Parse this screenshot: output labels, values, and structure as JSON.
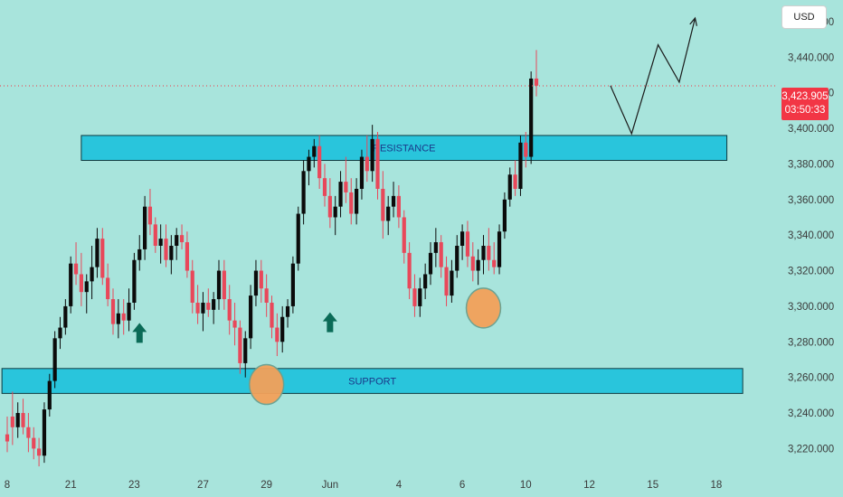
{
  "currency": "USD",
  "colors": {
    "background": "#a8e4dc",
    "bull": "#0b0b0b",
    "bear": "#e8485a",
    "zone_fill": "#29c5dc",
    "zone_stroke": "#0f3a40",
    "circle": "#f3a15a",
    "arrow": "#0a6b57",
    "price_tag": "#f23645"
  },
  "price_tag": {
    "price": "3,423.905",
    "countdown": "03:50:33"
  },
  "chart_data": {
    "type": "candlestick",
    "title": "",
    "y_range": [
      3207,
      3462
    ],
    "y_ticks": [
      "3,220.000",
      "3,240.000",
      "3,260.000",
      "3,280.000",
      "3,300.000",
      "3,320.000",
      "3,340.000",
      "3,360.000",
      "3,380.000",
      "3,400.000",
      "3,420.000",
      "3,440.000",
      "3,460.000"
    ],
    "x_ticks": [
      "8",
      "21",
      "23",
      "27",
      "29",
      "Jun",
      "4",
      "6",
      "10",
      "12",
      "15",
      "18"
    ],
    "x_tick_positions": [
      0,
      12,
      24,
      37,
      49,
      61,
      74,
      86,
      98,
      110,
      122,
      134
    ],
    "candles": [
      [
        3228,
        3238,
        3218,
        3224
      ],
      [
        3238,
        3252,
        3222,
        3232
      ],
      [
        3232,
        3246,
        3226,
        3240
      ],
      [
        3240,
        3248,
        3228,
        3232
      ],
      [
        3232,
        3240,
        3218,
        3226
      ],
      [
        3226,
        3232,
        3214,
        3220
      ],
      [
        3220,
        3226,
        3210,
        3216
      ],
      [
        3216,
        3246,
        3212,
        3242
      ],
      [
        3242,
        3262,
        3238,
        3258
      ],
      [
        3258,
        3286,
        3254,
        3282
      ],
      [
        3282,
        3294,
        3276,
        3288
      ],
      [
        3288,
        3304,
        3284,
        3300
      ],
      [
        3300,
        3328,
        3296,
        3324
      ],
      [
        3324,
        3336,
        3312,
        3318
      ],
      [
        3318,
        3330,
        3300,
        3308
      ],
      [
        3308,
        3318,
        3296,
        3314
      ],
      [
        3314,
        3334,
        3304,
        3322
      ],
      [
        3322,
        3344,
        3316,
        3338
      ],
      [
        3338,
        3344,
        3312,
        3316
      ],
      [
        3316,
        3324,
        3300,
        3304
      ],
      [
        3304,
        3310,
        3284,
        3290
      ],
      [
        3290,
        3304,
        3282,
        3296
      ],
      [
        3296,
        3304,
        3284,
        3292
      ],
      [
        3292,
        3310,
        3286,
        3302
      ],
      [
        3302,
        3330,
        3298,
        3326
      ],
      [
        3326,
        3340,
        3320,
        3332
      ],
      [
        3332,
        3362,
        3326,
        3356
      ],
      [
        3356,
        3366,
        3340,
        3346
      ],
      [
        3346,
        3350,
        3330,
        3334
      ],
      [
        3334,
        3346,
        3324,
        3338
      ],
      [
        3338,
        3346,
        3322,
        3326
      ],
      [
        3326,
        3340,
        3318,
        3334
      ],
      [
        3334,
        3344,
        3326,
        3340
      ],
      [
        3340,
        3346,
        3332,
        3336
      ],
      [
        3336,
        3342,
        3316,
        3320
      ],
      [
        3320,
        3326,
        3296,
        3302
      ],
      [
        3302,
        3312,
        3290,
        3296
      ],
      [
        3296,
        3308,
        3286,
        3302
      ],
      [
        3302,
        3310,
        3294,
        3298
      ],
      [
        3298,
        3308,
        3290,
        3304
      ],
      [
        3304,
        3326,
        3298,
        3320
      ],
      [
        3320,
        3326,
        3298,
        3304
      ],
      [
        3304,
        3312,
        3284,
        3292
      ],
      [
        3292,
        3302,
        3278,
        3288
      ],
      [
        3288,
        3292,
        3262,
        3268
      ],
      [
        3268,
        3286,
        3260,
        3282
      ],
      [
        3282,
        3312,
        3276,
        3306
      ],
      [
        3306,
        3326,
        3300,
        3320
      ],
      [
        3320,
        3326,
        3302,
        3310
      ],
      [
        3310,
        3318,
        3294,
        3302
      ],
      [
        3302,
        3306,
        3282,
        3288
      ],
      [
        3288,
        3296,
        3272,
        3280
      ],
      [
        3280,
        3300,
        3274,
        3294
      ],
      [
        3294,
        3304,
        3288,
        3300
      ],
      [
        3300,
        3328,
        3296,
        3324
      ],
      [
        3324,
        3356,
        3320,
        3352
      ],
      [
        3352,
        3382,
        3346,
        3376
      ],
      [
        3376,
        3388,
        3368,
        3384
      ],
      [
        3384,
        3394,
        3378,
        3390
      ],
      [
        3390,
        3396,
        3366,
        3372
      ],
      [
        3372,
        3380,
        3356,
        3362
      ],
      [
        3362,
        3372,
        3344,
        3350
      ],
      [
        3350,
        3362,
        3340,
        3356
      ],
      [
        3356,
        3376,
        3350,
        3370
      ],
      [
        3370,
        3384,
        3358,
        3364
      ],
      [
        3364,
        3372,
        3346,
        3352
      ],
      [
        3352,
        3372,
        3346,
        3366
      ],
      [
        3366,
        3388,
        3360,
        3384
      ],
      [
        3384,
        3396,
        3370,
        3376
      ],
      [
        3376,
        3402,
        3370,
        3394
      ],
      [
        3394,
        3398,
        3360,
        3366
      ],
      [
        3366,
        3376,
        3338,
        3348
      ],
      [
        3348,
        3362,
        3340,
        3356
      ],
      [
        3356,
        3370,
        3350,
        3362
      ],
      [
        3362,
        3368,
        3344,
        3350
      ],
      [
        3350,
        3354,
        3324,
        3330
      ],
      [
        3330,
        3336,
        3304,
        3310
      ],
      [
        3310,
        3318,
        3294,
        3300
      ],
      [
        3300,
        3316,
        3294,
        3310
      ],
      [
        3310,
        3324,
        3304,
        3318
      ],
      [
        3318,
        3336,
        3312,
        3330
      ],
      [
        3330,
        3344,
        3322,
        3336
      ],
      [
        3336,
        3340,
        3316,
        3322
      ],
      [
        3322,
        3328,
        3300,
        3306
      ],
      [
        3306,
        3326,
        3302,
        3320
      ],
      [
        3320,
        3340,
        3316,
        3334
      ],
      [
        3334,
        3346,
        3326,
        3342
      ],
      [
        3342,
        3348,
        3322,
        3328
      ],
      [
        3328,
        3336,
        3314,
        3320
      ],
      [
        3320,
        3332,
        3312,
        3326
      ],
      [
        3326,
        3340,
        3318,
        3334
      ],
      [
        3334,
        3344,
        3320,
        3326
      ],
      [
        3326,
        3336,
        3318,
        3322
      ],
      [
        3322,
        3346,
        3318,
        3342
      ],
      [
        3342,
        3364,
        3338,
        3360
      ],
      [
        3360,
        3378,
        3356,
        3374
      ],
      [
        3374,
        3382,
        3362,
        3366
      ],
      [
        3366,
        3396,
        3362,
        3392
      ],
      [
        3392,
        3398,
        3378,
        3384
      ],
      [
        3384,
        3432,
        3380,
        3428
      ],
      [
        3428,
        3444,
        3418,
        3424
      ]
    ],
    "zones": [
      {
        "name": "RESISTANCE",
        "from": 3382,
        "to": 3396,
        "x_start": 14,
        "x_end": 136
      },
      {
        "name": "SUPPORT",
        "from": 3251,
        "to": 3265,
        "x_start": -1,
        "x_end": 139
      }
    ],
    "annotations": {
      "circles": [
        {
          "x": 49,
          "y": 3256
        },
        {
          "x": 90,
          "y": 3299
        }
      ],
      "up_arrows": [
        {
          "x": 25,
          "y": 3284
        },
        {
          "x": 61,
          "y": 3290
        }
      ],
      "projection": [
        [
          114,
          3424
        ],
        [
          118,
          3397
        ],
        [
          123,
          3447
        ],
        [
          127,
          3426
        ],
        [
          130,
          3462
        ]
      ],
      "current_price": 3423.905
    }
  }
}
